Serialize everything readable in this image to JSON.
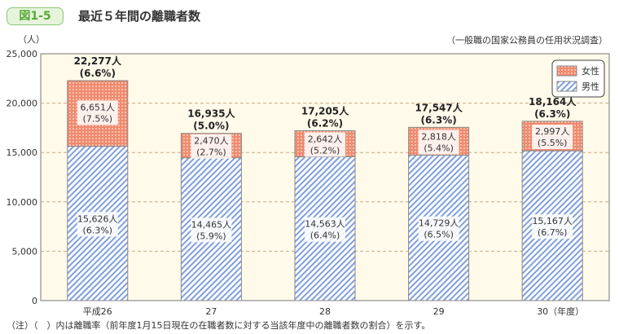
{
  "header": {
    "figure_label": "図1-5",
    "title": "最近５年間の離職者数",
    "source": "（一般職の国家公務員の任用状況調査）"
  },
  "note": "（注）（　）内は離職率（前年度1月15日現在の在職者数に対する当該年度中の離職者数の割合）を示す。",
  "colors": {
    "female": "#f08a6e",
    "male": "#7f9fdc",
    "plot_bg": "#fffaea",
    "grid": "#c9aa88"
  },
  "chart_data": {
    "type": "bar",
    "stacked": true,
    "ylabel": "（人）",
    "ylim": [
      0,
      25000
    ],
    "yticks": [
      "0",
      "5,000",
      "10,000",
      "15,000",
      "20,000",
      "25,000"
    ],
    "grid": true,
    "legend": "top-right",
    "categories": [
      "平成26",
      "27",
      "28",
      "29",
      "30（年度）"
    ],
    "series": [
      {
        "name": "男性",
        "values": [
          15626,
          14465,
          14563,
          14729,
          15167
        ],
        "labels": [
          "15,626人",
          "14,465人",
          "14,563人",
          "14,729人",
          "15,167人"
        ],
        "rates": [
          "(6.3%)",
          "(5.9%)",
          "(6.4%)",
          "(6.5%)",
          "(6.7%)"
        ]
      },
      {
        "name": "女性",
        "values": [
          6651,
          2470,
          2642,
          2818,
          2997
        ],
        "labels": [
          "6,651人",
          "2,470人",
          "2,642人",
          "2,818人",
          "2,997人"
        ],
        "rates": [
          "(7.5%)",
          "(2.7%)",
          "(5.2%)",
          "(5.4%)",
          "(5.5%)"
        ]
      }
    ],
    "totals": {
      "labels": [
        "22,277人",
        "16,935人",
        "17,205人",
        "17,547人",
        "18,164人"
      ],
      "rates": [
        "(6.6%)",
        "(5.0%)",
        "(6.2%)",
        "(6.3%)",
        "(6.3%)"
      ]
    }
  }
}
